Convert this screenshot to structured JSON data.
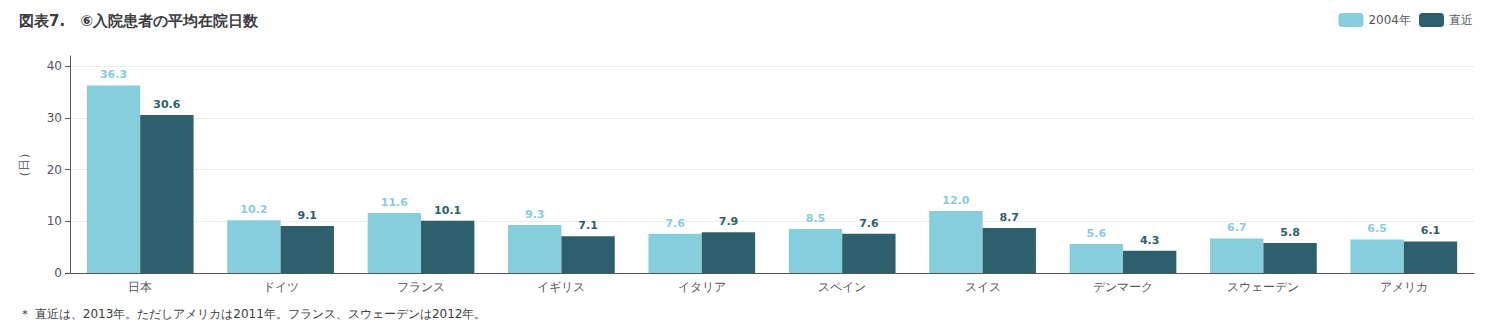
{
  "chart_data": {
    "type": "bar",
    "title": "図表7.　⑥入院患者の平均在院日数",
    "ylabel": "（日）",
    "footnote": "＊ 直近は、2013年。ただしアメリカは2011年。フランス、スウェーデンは2012年。",
    "categories": [
      "日本",
      "ドイツ",
      "フランス",
      "イギリス",
      "イタリア",
      "スペイン",
      "スイス",
      "デンマーク",
      "スウェーデン",
      "アメリカ"
    ],
    "series": [
      {
        "name": "2004年",
        "color": "#87CEDC",
        "values": [
          36.3,
          10.2,
          11.6,
          9.3,
          7.6,
          8.5,
          12.0,
          5.6,
          6.7,
          6.5
        ],
        "value_labels": [
          "36.3",
          "10.2",
          "11.6",
          "9.3",
          "7.6",
          "8.5",
          "12.0",
          "5.6",
          "6.7",
          "6.5"
        ]
      },
      {
        "name": "直近",
        "color": "#2E5F6C",
        "values": [
          30.6,
          9.1,
          10.1,
          7.1,
          7.9,
          7.6,
          8.7,
          4.3,
          5.8,
          6.1
        ]
      }
    ],
    "ylim": [
      0,
      42
    ],
    "yticks": [
      0,
      10,
      20,
      30,
      40
    ],
    "grid": true,
    "legend": "upper right",
    "data_labels": true
  }
}
